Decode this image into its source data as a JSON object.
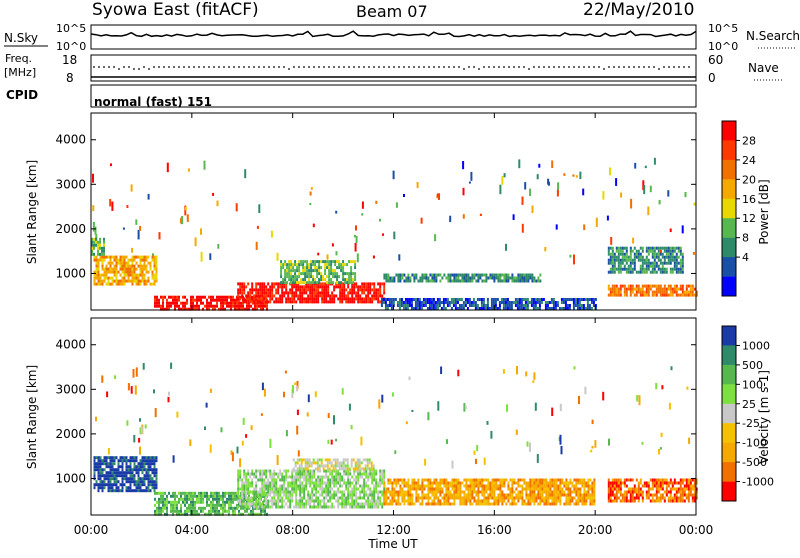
{
  "header": {
    "station": "Syowa East (fitACF)",
    "beam": "Beam 07",
    "date": "22/May/2010"
  },
  "sky_panel": {
    "left_label": "N.Sky",
    "left_ticks": [
      "10^5",
      "10^0"
    ],
    "right_label": "N.Search",
    "right_ticks": [
      "10^5",
      "10^0"
    ]
  },
  "freq_panel": {
    "left_label_1": "Freq.",
    "left_label_2": "[MHz]",
    "left_ticks": [
      "18",
      "8"
    ],
    "right_label": "Nave",
    "right_ticks": [
      "60",
      "0"
    ]
  },
  "cpid": {
    "label": "CPID",
    "value": "normal (fast) 151"
  },
  "x_axis": {
    "label": "Time UT",
    "ticks": [
      "00:00",
      "04:00",
      "08:00",
      "12:00",
      "16:00",
      "20:00",
      "00:00"
    ]
  },
  "chart_data": [
    {
      "type": "heatmap",
      "quantity": "power",
      "xlabel": "Time UT",
      "ylabel": "Slant Range [km]",
      "xlim": [
        0,
        24
      ],
      "ylim": [
        180,
        4600
      ],
      "y_ticks": [
        1000,
        2000,
        3000,
        4000
      ],
      "colorbar": {
        "label": "Power [dB]",
        "ticks": [
          "28",
          "24",
          "20",
          "16",
          "12",
          "8",
          "4"
        ],
        "colors": [
          "#ff0000",
          "#ff3a00",
          "#f07000",
          "#f5a800",
          "#e8d800",
          "#58b850",
          "#2f8a6a",
          "#1a4fa8",
          "#0000ff"
        ]
      },
      "regions": [
        {
          "t": [
            0.1,
            2.6
          ],
          "r": [
            750,
            1400
          ],
          "level": 5
        },
        {
          "t": [
            0.0,
            0.5
          ],
          "r": [
            1400,
            1800
          ],
          "level": 3
        },
        {
          "t": [
            2.5,
            7.0
          ],
          "r": [
            200,
            500
          ],
          "level": 8
        },
        {
          "t": [
            5.8,
            11.6
          ],
          "r": [
            350,
            800
          ],
          "level": 8
        },
        {
          "t": [
            7.5,
            10.5
          ],
          "r": [
            800,
            1300
          ],
          "level": 3
        },
        {
          "t": [
            11.6,
            17.8
          ],
          "r": [
            800,
            1000
          ],
          "level": 2
        },
        {
          "t": [
            11.5,
            20.0
          ],
          "r": [
            200,
            450
          ],
          "level": 1
        },
        {
          "t": [
            20.5,
            24.0
          ],
          "r": [
            500,
            750
          ],
          "level": 6
        },
        {
          "t": [
            20.5,
            23.5
          ],
          "r": [
            1000,
            1600
          ],
          "level": 2
        }
      ]
    },
    {
      "type": "heatmap",
      "quantity": "velocity",
      "xlabel": "Time UT",
      "ylabel": "Slant Range [km]",
      "xlim": [
        0,
        24
      ],
      "ylim": [
        180,
        4600
      ],
      "y_ticks": [
        1000,
        2000,
        3000,
        4000
      ],
      "colorbar": {
        "label": "Velocity [m s-1]",
        "ticks": [
          "1000",
          "500",
          "100",
          "25",
          "-25",
          "-100",
          "-500",
          "-1000"
        ],
        "colors": [
          "#1a3aa8",
          "#2f8a6a",
          "#58b850",
          "#7ee040",
          "#c8c8c8",
          "#f5c000",
          "#f5a800",
          "#f07000",
          "#ff0000"
        ]
      },
      "regions": [
        {
          "t": [
            0.1,
            2.6
          ],
          "r": [
            750,
            1500
          ],
          "level": 8
        },
        {
          "t": [
            2.5,
            7.0
          ],
          "r": [
            200,
            700
          ],
          "level": 6
        },
        {
          "t": [
            5.8,
            11.6
          ],
          "r": [
            350,
            1200
          ],
          "level": 5
        },
        {
          "t": [
            8.0,
            11.2
          ],
          "r": [
            1200,
            1450
          ],
          "level": 4
        },
        {
          "t": [
            11.6,
            20.0
          ],
          "r": [
            450,
            1000
          ],
          "level": 2
        },
        {
          "t": [
            20.5,
            24.0
          ],
          "r": [
            500,
            1000
          ],
          "level": 1
        }
      ]
    }
  ]
}
